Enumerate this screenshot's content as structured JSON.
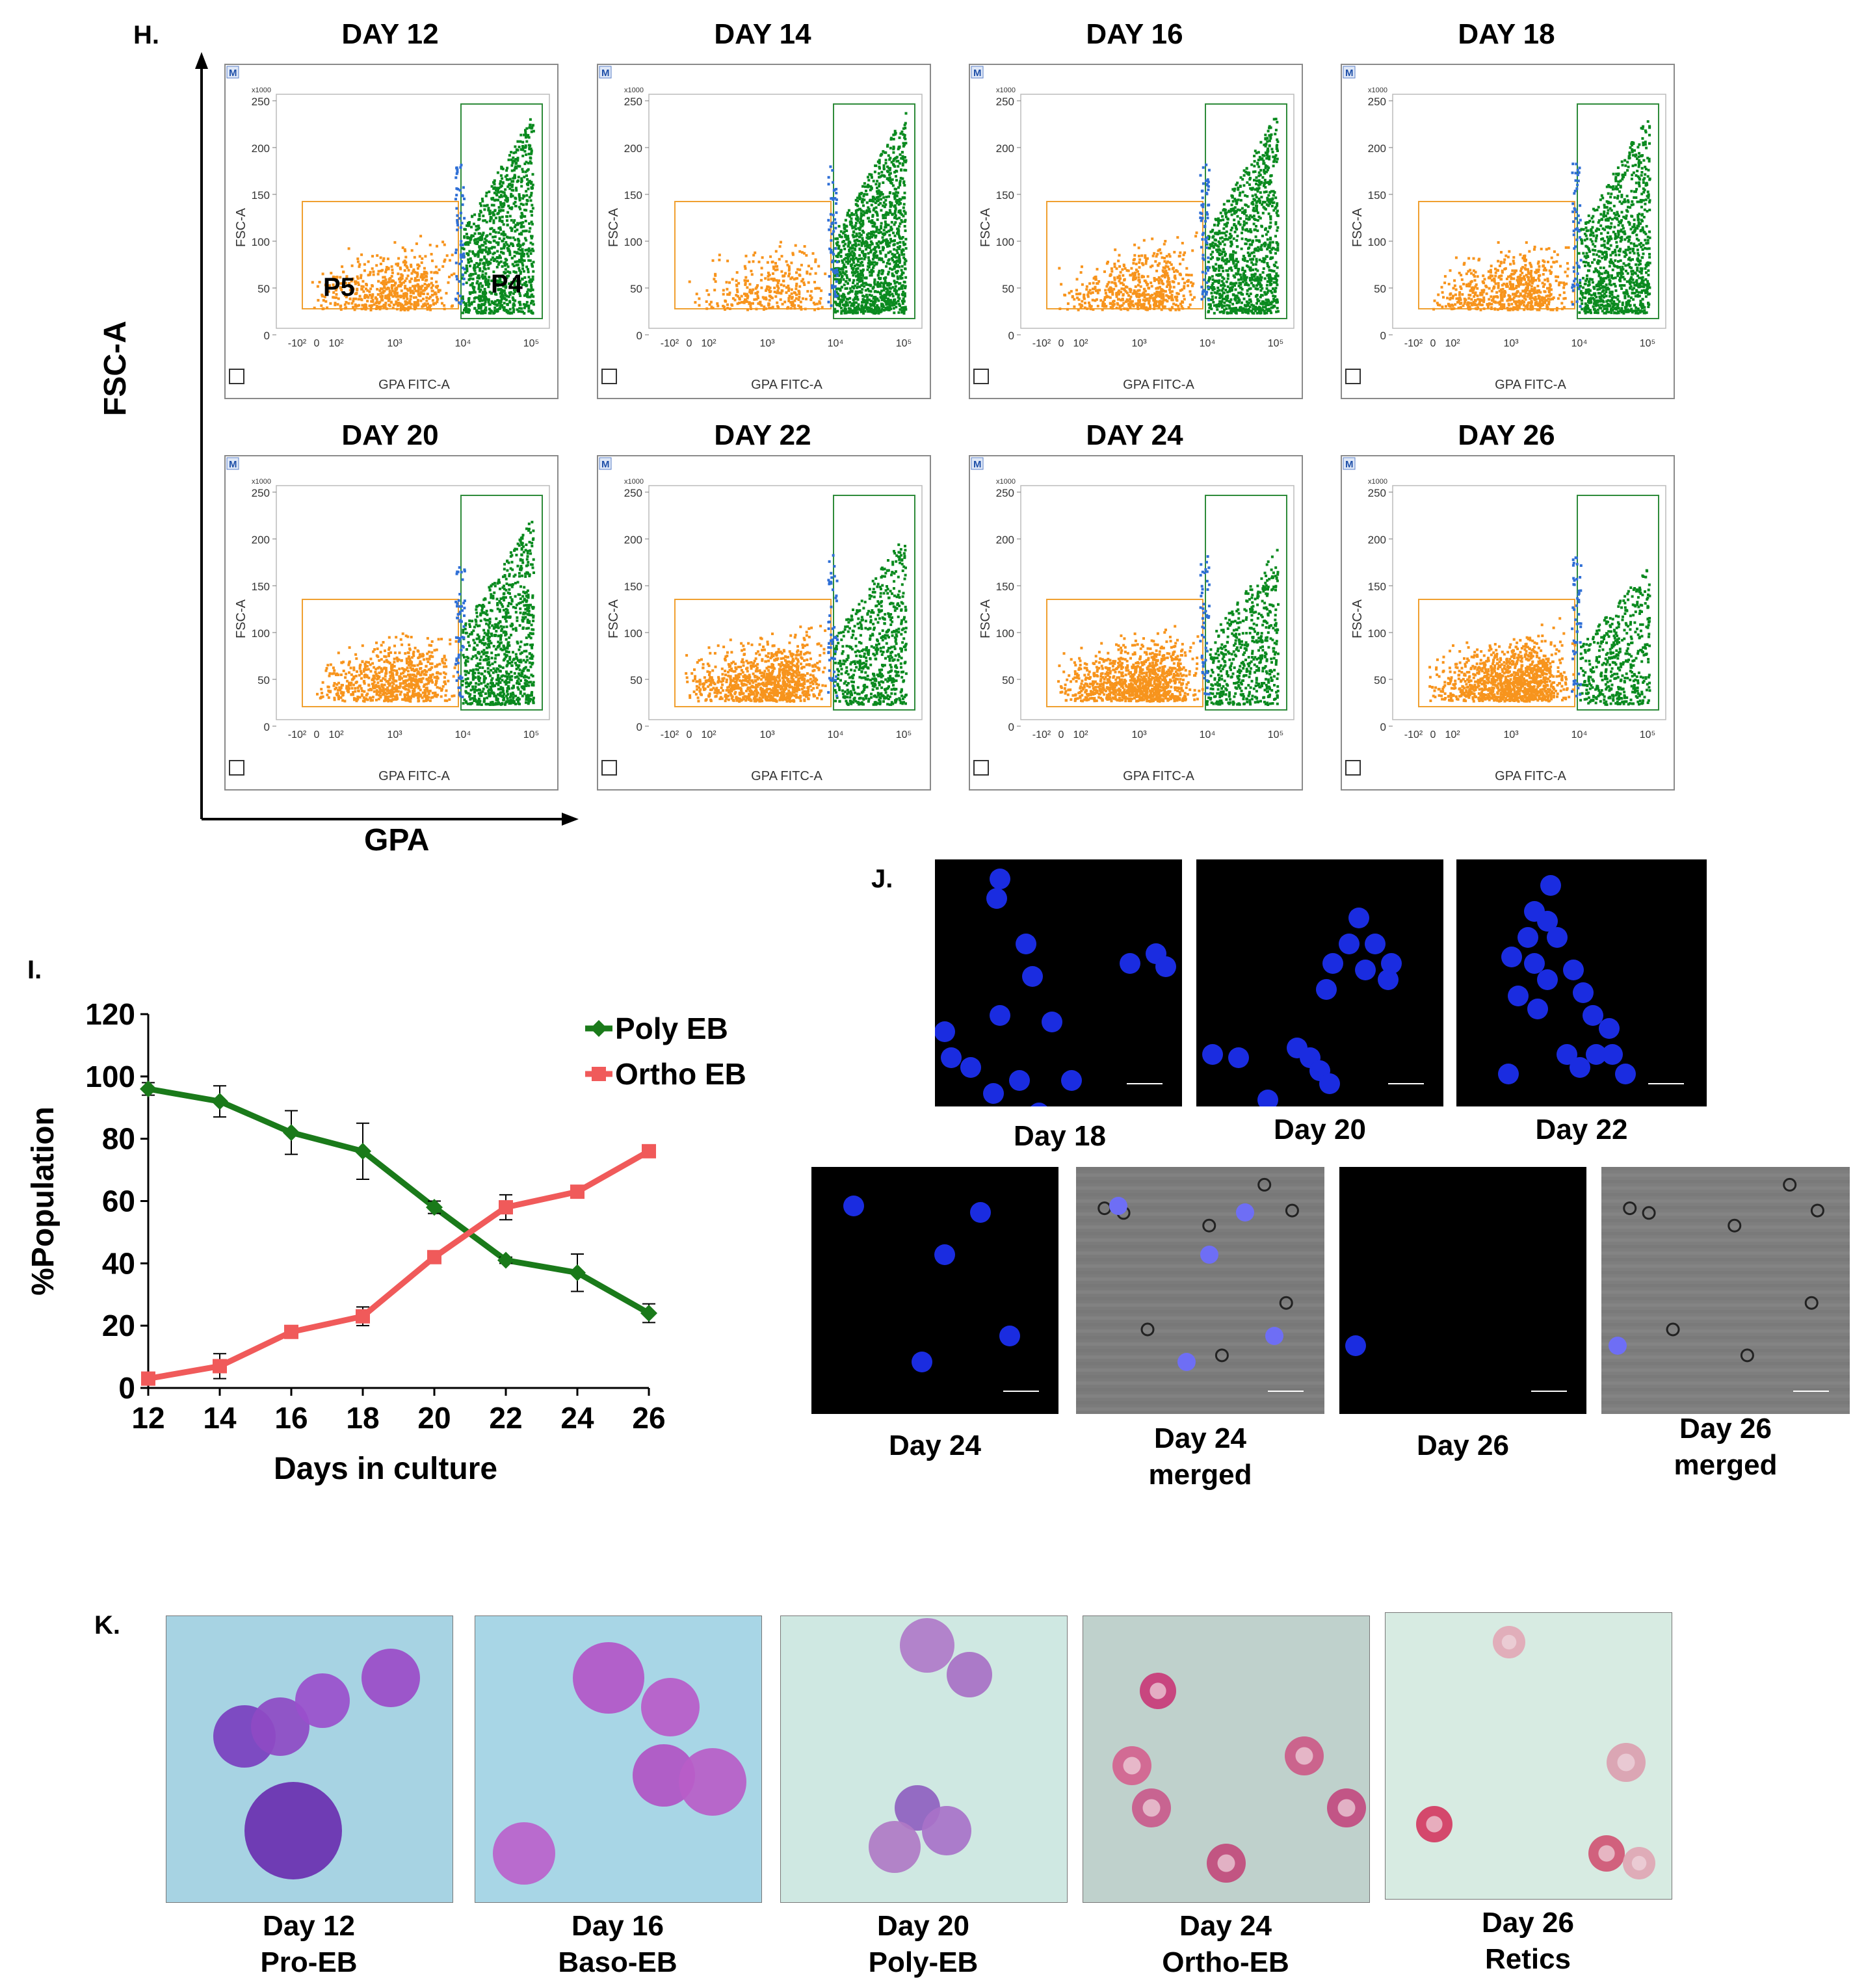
{
  "panelH": {
    "letter": "H.",
    "y_axis_label": "FSC-A",
    "x_axis_label": "GPA",
    "plots": [
      {
        "title": "DAY 12",
        "gate_p5": "P5",
        "gate_p4": "P4",
        "orange": 0.36,
        "green": 0.64,
        "blue": 0.06
      },
      {
        "title": "DAY 14",
        "orange": 0.2,
        "green": 0.8,
        "blue": 0.06
      },
      {
        "title": "DAY 16",
        "orange": 0.35,
        "green": 0.65,
        "blue": 0.08
      },
      {
        "title": "DAY 18",
        "orange": 0.4,
        "green": 0.6,
        "blue": 0.05
      },
      {
        "title": "DAY 20",
        "orange": 0.45,
        "green": 0.55,
        "blue": 0.06
      },
      {
        "title": "DAY 22",
        "orange": 0.6,
        "green": 0.4,
        "blue": 0.05
      },
      {
        "title": "DAY 24",
        "orange": 0.65,
        "green": 0.35,
        "blue": 0.05
      },
      {
        "title": "DAY 26",
        "orange": 0.7,
        "green": 0.3,
        "blue": 0.04
      }
    ],
    "plot_common": {
      "m_badge": "M",
      "y_unit": "x1000",
      "y_ticks": [
        "250",
        "200",
        "150",
        "100",
        "50",
        "0"
      ],
      "fsc_label": "FSC-A",
      "x_ticks": [
        "-10²",
        "0",
        "10²",
        "10³",
        "10⁴",
        "10⁵"
      ],
      "gpa_label": "GPA FITC-A"
    },
    "colors": {
      "orange": "#f7941d",
      "green": "#0a8a1f",
      "blue": "#2f6fd6",
      "gate_orange": "#f0a030",
      "gate_green": "#2e8b3a"
    }
  },
  "panelI": {
    "letter": "I.",
    "chart_data": {
      "type": "line",
      "x": [
        12,
        14,
        16,
        18,
        20,
        22,
        24,
        26
      ],
      "series": [
        {
          "name": "Poly EB",
          "color": "#1a7a1a",
          "marker": "diamond",
          "values": [
            96,
            92,
            82,
            76,
            58,
            41,
            37,
            24
          ],
          "errors": [
            2,
            5,
            7,
            9,
            2,
            1,
            6,
            3
          ]
        },
        {
          "name": "Ortho EB",
          "color": "#f05a5a",
          "marker": "square",
          "values": [
            3,
            7,
            18,
            23,
            42,
            58,
            63,
            76
          ],
          "errors": [
            1,
            4,
            2,
            3,
            2,
            4,
            2,
            1
          ]
        }
      ],
      "ylabel": "%Population",
      "xlabel": "Days in culture",
      "ylim": [
        0,
        120
      ],
      "yticks": [
        "0",
        "20",
        "40",
        "60",
        "80",
        "100",
        "120"
      ],
      "xticks": [
        "12",
        "14",
        "16",
        "18",
        "20",
        "22",
        "24",
        "26"
      ],
      "legend_position": "top-right"
    }
  },
  "panelJ": {
    "letter": "J.",
    "top_captions": [
      "Day 18",
      "Day 20",
      "Day 22"
    ],
    "bottom_captions": [
      {
        "line1": "Day 24",
        "line2": ""
      },
      {
        "line1": "Day 24",
        "line2": "merged"
      },
      {
        "line1": "Day 26",
        "line2": ""
      },
      {
        "line1": "Day 26",
        "line2": "merged"
      }
    ]
  },
  "panelK": {
    "letter": "K.",
    "items": [
      {
        "day": "Day 12",
        "stage": "Pro-EB"
      },
      {
        "day": "Day 16",
        "stage": "Baso-EB"
      },
      {
        "day": "Day 20",
        "stage": "Poly-EB"
      },
      {
        "day": "Day 24",
        "stage": "Ortho-EB"
      },
      {
        "day": "Day 26",
        "stage": "Retics"
      }
    ]
  }
}
